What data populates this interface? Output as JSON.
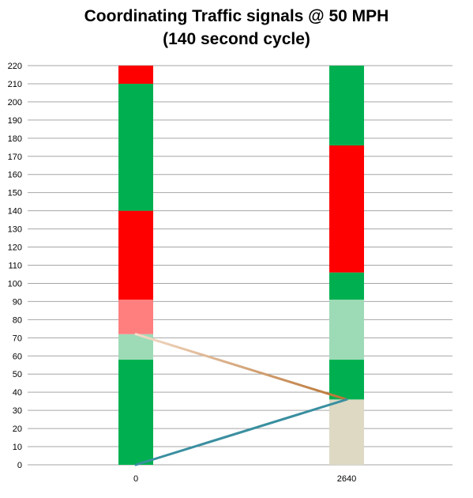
{
  "title": {
    "line1": "Coordinating Traffic signals @ 50 MPH",
    "line2": "(140 second cycle)"
  },
  "chart_data": {
    "type": "bar",
    "title": "Coordinating Traffic signals @ 50 MPH (140 second cycle)",
    "xlabel": "",
    "ylabel": "",
    "categories": [
      "0",
      "2640"
    ],
    "ylim": [
      0,
      220
    ],
    "ytick_step": 10,
    "grid": true,
    "legend": "none",
    "stacks": [
      {
        "category": "0",
        "segments": [
          {
            "from": 0,
            "to": 58,
            "color": "#00b050"
          },
          {
            "from": 58,
            "to": 72,
            "color": "#9ddbb7"
          },
          {
            "from": 72,
            "to": 91,
            "color": "#ff7f7f"
          },
          {
            "from": 91,
            "to": 140,
            "color": "#ff0000"
          },
          {
            "from": 140,
            "to": 210,
            "color": "#00b050"
          },
          {
            "from": 210,
            "to": 220,
            "color": "#ff0000"
          }
        ]
      },
      {
        "category": "2640",
        "segments": [
          {
            "from": 0,
            "to": 36,
            "color": "#ddd9c3"
          },
          {
            "from": 36,
            "to": 58,
            "color": "#00b050"
          },
          {
            "from": 58,
            "to": 91,
            "color": "#9ddbb7"
          },
          {
            "from": 91,
            "to": 106,
            "color": "#00b050"
          },
          {
            "from": 106,
            "to": 176,
            "color": "#ff0000"
          },
          {
            "from": 176,
            "to": 220,
            "color": "#00b050"
          }
        ]
      }
    ],
    "lines": [
      {
        "from": [
          "0",
          72
        ],
        "to": [
          "2640",
          36
        ],
        "color_start": "#f2dcc8",
        "color_end": "#b97333"
      },
      {
        "from": [
          "0",
          0
        ],
        "to": [
          "2640",
          36
        ],
        "color_start": "#3a8fa0",
        "color_end": "#3a8fa0"
      }
    ],
    "colors": {
      "green": "#00b050",
      "red": "#ff0000",
      "light_green": "#9ddbb7",
      "light_red": "#ff7f7f",
      "tan": "#ddd9c3",
      "gridline": "#a6a6a6"
    }
  }
}
